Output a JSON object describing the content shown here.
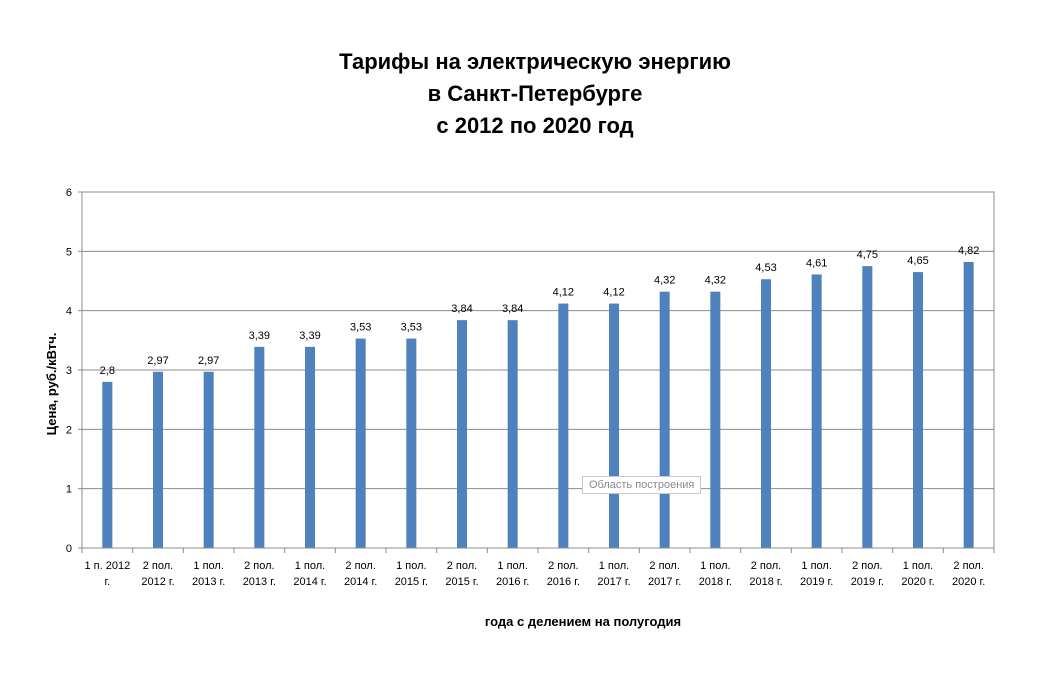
{
  "chart_data": {
    "type": "bar",
    "title_lines": [
      "Тарифы на электрическую энергию",
      "в Санкт-Петербурге",
      "с 2012 по 2020 год"
    ],
    "xlabel": "года с делением на полугодия",
    "ylabel": "Цена, руб./кВтч.",
    "ylim": [
      0,
      6
    ],
    "yticks": [
      0,
      1,
      2,
      3,
      4,
      5,
      6
    ],
    "grid": true,
    "legend": "none",
    "bar_color": "#4f81bd",
    "categories": [
      [
        "1 п. 2012",
        "г."
      ],
      [
        "2 пол.",
        "2012 г."
      ],
      [
        "1 пол.",
        "2013 г."
      ],
      [
        "2 пол.",
        "2013 г."
      ],
      [
        "1 пол.",
        "2014 г."
      ],
      [
        "2 пол.",
        "2014 г."
      ],
      [
        "1 пол.",
        "2015 г."
      ],
      [
        "2 пол.",
        "2015 г."
      ],
      [
        "1 пол.",
        "2016 г."
      ],
      [
        "2 пол.",
        "2016 г."
      ],
      [
        "1 пол.",
        "2017 г."
      ],
      [
        "2 пол.",
        "2017 г."
      ],
      [
        "1 пол.",
        "2018 г."
      ],
      [
        "2 пол.",
        "2018 г."
      ],
      [
        "1 пол.",
        "2019 г."
      ],
      [
        "2 пол.",
        "2019 г."
      ],
      [
        "1 пол.",
        "2020 г."
      ],
      [
        "2 пол.",
        "2020 г."
      ]
    ],
    "values": [
      2.8,
      2.97,
      2.97,
      3.39,
      3.39,
      3.53,
      3.53,
      3.84,
      3.84,
      4.12,
      4.12,
      4.32,
      4.32,
      4.53,
      4.61,
      4.75,
      4.65,
      4.82
    ],
    "data_labels": [
      "2,8",
      "2,97",
      "2,97",
      "3,39",
      "3,39",
      "3,53",
      "3,53",
      "3,84",
      "3,84",
      "4,12",
      "4,12",
      "4,32",
      "4,32",
      "4,53",
      "4,61",
      "4,75",
      "4,65",
      "4,82"
    ]
  },
  "ui": {
    "plot_area_tooltip": "Область построения"
  }
}
